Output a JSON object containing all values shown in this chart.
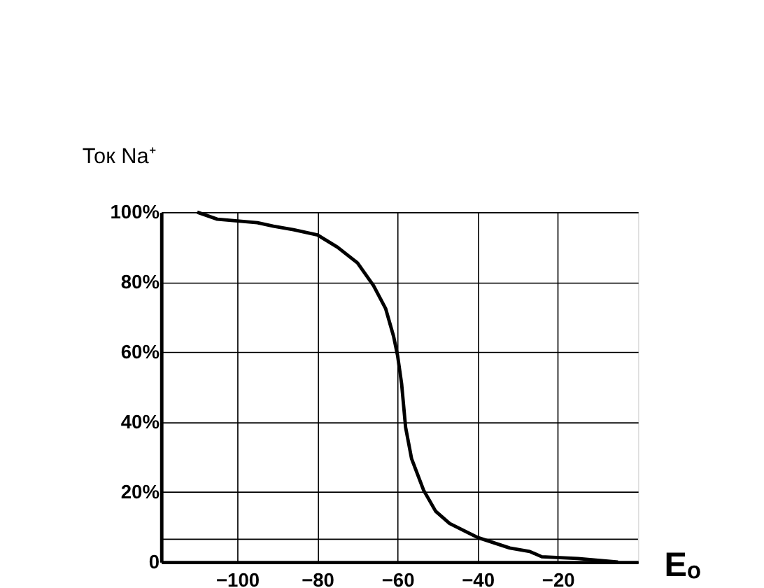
{
  "chart_data": {
    "type": "line",
    "xlabel": "Eₒ",
    "ylabel": "Ток Na⁺",
    "x": [
      -110,
      -105,
      -95,
      -91,
      -86,
      -80,
      -75,
      -70,
      -66,
      -63,
      -61,
      -60,
      -59,
      -58,
      -56.5,
      -53.5,
      -50.5,
      -47,
      -40,
      -32,
      -27,
      -24,
      -15,
      -5
    ],
    "series": [
      {
        "color": "#000000",
        "values": [
          100,
          98,
          97,
          96,
          95,
          93.5,
          90,
          85.5,
          79,
          72.5,
          64.5,
          59,
          51,
          38.5,
          29.5,
          20.5,
          14.5,
          11,
          7,
          4,
          3,
          1.5,
          1,
          0
        ]
      }
    ],
    "xlim": [
      -119,
      0
    ],
    "ylim": [
      0,
      100
    ],
    "xticks": [
      -100,
      -80,
      -60,
      -40,
      -20
    ],
    "yticks": [
      {
        "value": 0,
        "label": "0"
      },
      {
        "value": 20,
        "label": "20%"
      },
      {
        "value": 40,
        "label": "40%"
      },
      {
        "value": 60,
        "label": "60%"
      },
      {
        "value": 80,
        "label": "80%"
      },
      {
        "value": 100,
        "label": "100%"
      }
    ],
    "ref_lines": [
      {
        "axis": "y",
        "value": 6.5,
        "label": null
      }
    ],
    "grid": true,
    "marker": "none",
    "line_style": "solid"
  }
}
